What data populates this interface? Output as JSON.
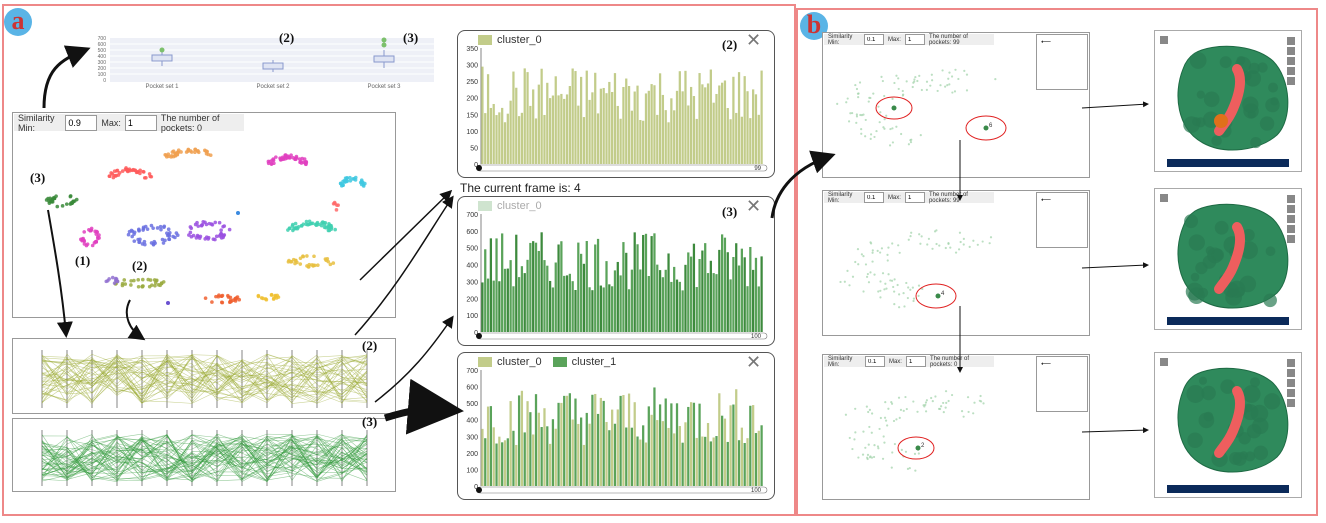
{
  "panels": {
    "a": {
      "badge": "a"
    },
    "b": {
      "badge": "b"
    }
  },
  "boxplot": {
    "yticks": [
      "700",
      "600",
      "500",
      "400",
      "300",
      "200",
      "100",
      "0"
    ],
    "categories": [
      "Pocket set 1",
      "Pocket set 2",
      "Pocket set 3"
    ]
  },
  "annotations": {
    "n1": "(1)",
    "n2": "(2)",
    "n3": "(3)"
  },
  "scatter_controls": {
    "sim_min_label": "Similarity Min:",
    "sim_min_value": "0.9",
    "max_label": "Max:",
    "max_value": "1",
    "pockets_label": "The number of pockets: 0"
  },
  "histograms": [
    {
      "legend": [
        "cluster_0"
      ],
      "yticks": [
        "350",
        "300",
        "250",
        "200",
        "150",
        "100",
        "50",
        "0"
      ],
      "x_end": "99",
      "tag": "(2)"
    },
    {
      "legend": [
        "cluster_0"
      ],
      "yticks": [
        "700",
        "600",
        "500",
        "400",
        "300",
        "200",
        "100",
        "0"
      ],
      "x_end": "100",
      "tag": "(3)"
    },
    {
      "legend": [
        "cluster_0",
        "cluster_1"
      ],
      "yticks": [
        "700",
        "600",
        "500",
        "400",
        "300",
        "200",
        "100",
        "0"
      ],
      "x_end": "100",
      "tag": ""
    }
  ],
  "frame_text": "The current frame is: 4",
  "b_rows": [
    {
      "sim_min_label": "Similarity Min:",
      "sim_min_value": "0.1",
      "max_label": "Max:",
      "max_value": "1",
      "pockets_label": "The number of pockets: 99",
      "point_label": "6"
    },
    {
      "sim_min_label": "Similarity Min:",
      "sim_min_value": "0.1",
      "max_label": "Max:",
      "max_value": "1",
      "pockets_label": "The number of pockets: 99",
      "point_label": "4"
    },
    {
      "sim_min_label": "Similarity Min:",
      "sim_min_value": "0.1",
      "max_label": "Max:",
      "max_value": "1",
      "pockets_label": "The number of pockets: 0",
      "point_label": "2"
    }
  ],
  "colors": {
    "panel_border": "#e88888",
    "olive": "#c2cc8a",
    "green": "#5aa35a",
    "protein": "#2f8a5c",
    "pocket": "#ee5e5e"
  }
}
